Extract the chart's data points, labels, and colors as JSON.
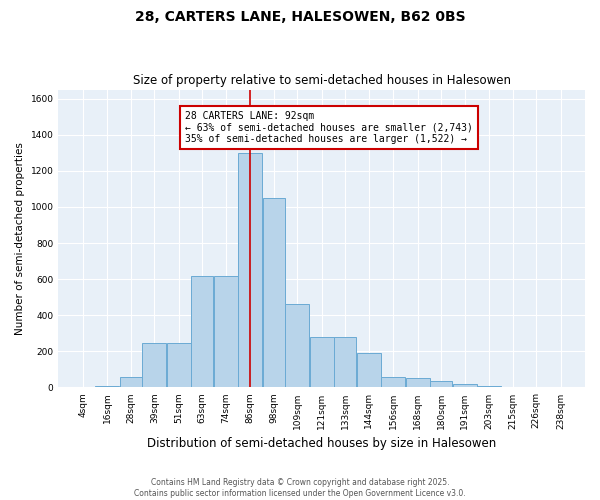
{
  "title": "28, CARTERS LANE, HALESOWEN, B62 0BS",
  "subtitle": "Size of property relative to semi-detached houses in Halesowen",
  "xlabel": "Distribution of semi-detached houses by size in Halesowen",
  "ylabel": "Number of semi-detached properties",
  "categories": [
    "4sqm",
    "16sqm",
    "28sqm",
    "39sqm",
    "51sqm",
    "63sqm",
    "74sqm",
    "86sqm",
    "98sqm",
    "109sqm",
    "121sqm",
    "133sqm",
    "144sqm",
    "156sqm",
    "168sqm",
    "180sqm",
    "191sqm",
    "203sqm",
    "215sqm",
    "226sqm",
    "238sqm"
  ],
  "bar_edges": [
    4,
    16,
    28,
    39,
    51,
    63,
    74,
    86,
    98,
    109,
    121,
    133,
    144,
    156,
    168,
    180,
    191,
    203,
    215,
    226,
    238,
    250
  ],
  "values": [
    2,
    8,
    60,
    245,
    245,
    620,
    620,
    1300,
    1050,
    460,
    280,
    280,
    190,
    60,
    50,
    35,
    20,
    6,
    2,
    2,
    1
  ],
  "bar_color": "#b8d4ea",
  "bar_edge_color": "#6aaad4",
  "property_sqm": 92,
  "property_line_color": "#cc0000",
  "annotation_text": "28 CARTERS LANE: 92sqm\n← 63% of semi-detached houses are smaller (2,743)\n35% of semi-detached houses are larger (1,522) →",
  "annotation_box_color": "#cc0000",
  "ylim": [
    0,
    1650
  ],
  "yticks": [
    0,
    200,
    400,
    600,
    800,
    1000,
    1200,
    1400,
    1600
  ],
  "background_color": "#e8f0f8",
  "grid_color": "#ffffff",
  "footer_line1": "Contains HM Land Registry data © Crown copyright and database right 2025.",
  "footer_line2": "Contains public sector information licensed under the Open Government Licence v3.0.",
  "title_fontsize": 10,
  "subtitle_fontsize": 8.5,
  "tick_fontsize": 6.5,
  "ylabel_fontsize": 7.5,
  "xlabel_fontsize": 8.5,
  "footer_fontsize": 5.5
}
